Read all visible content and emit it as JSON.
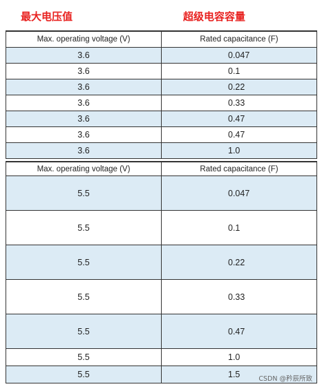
{
  "headers": {
    "max_voltage_cn": "最大电压值",
    "capacitance_cn": "超级电容容量"
  },
  "table1": {
    "columns": [
      "Max. operating voltage (V)",
      "Rated capacitance (F)"
    ],
    "rows": [
      [
        "3.6",
        "0.047"
      ],
      [
        "3.6",
        "0.1"
      ],
      [
        "3.6",
        "0.22"
      ],
      [
        "3.6",
        "0.33"
      ],
      [
        "3.6",
        "0.47"
      ],
      [
        "3.6",
        "0.47"
      ],
      [
        "3.6",
        "1.0"
      ]
    ]
  },
  "table2": {
    "columns": [
      "Max. operating voltage (V)",
      "Rated capacitance (F)"
    ],
    "rows": [
      [
        "5.5",
        "0.047"
      ],
      [
        "5.5",
        "0.1"
      ],
      [
        "5.5",
        "0.22"
      ],
      [
        "5.5",
        "0.33"
      ],
      [
        "5.5",
        "0.47"
      ],
      [
        "5.5",
        "1.0"
      ],
      [
        "5.5",
        "1.5"
      ]
    ]
  },
  "watermark": "CSDN @矜辰所致",
  "colors": {
    "header_red": "#e8211f",
    "row_shade": "#dcebf5",
    "border": "#333333"
  }
}
